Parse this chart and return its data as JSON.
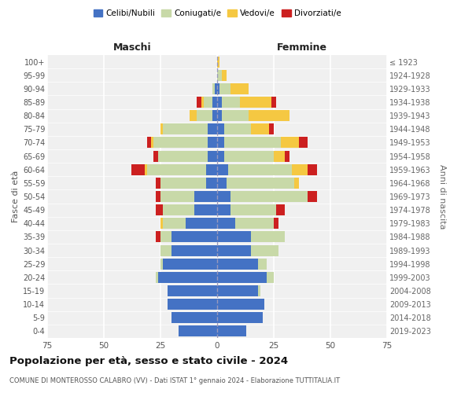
{
  "age_groups": [
    "0-4",
    "5-9",
    "10-14",
    "15-19",
    "20-24",
    "25-29",
    "30-34",
    "35-39",
    "40-44",
    "45-49",
    "50-54",
    "55-59",
    "60-64",
    "65-69",
    "70-74",
    "75-79",
    "80-84",
    "85-89",
    "90-94",
    "95-99",
    "100+"
  ],
  "birth_years": [
    "2019-2023",
    "2014-2018",
    "2009-2013",
    "2004-2008",
    "1999-2003",
    "1994-1998",
    "1989-1993",
    "1984-1988",
    "1979-1983",
    "1974-1978",
    "1969-1973",
    "1964-1968",
    "1959-1963",
    "1954-1958",
    "1949-1953",
    "1944-1948",
    "1939-1943",
    "1934-1938",
    "1929-1933",
    "1924-1928",
    "≤ 1923"
  ],
  "colors": {
    "celibi": "#4472c4",
    "coniugati": "#c8d9a8",
    "vedovi": "#f5c842",
    "divorziati": "#cc2020"
  },
  "maschi": {
    "celibi": [
      17,
      20,
      22,
      22,
      26,
      24,
      20,
      20,
      14,
      10,
      10,
      5,
      5,
      4,
      4,
      4,
      2,
      2,
      1,
      0,
      0
    ],
    "coniugati": [
      0,
      0,
      0,
      0,
      1,
      1,
      5,
      5,
      10,
      14,
      15,
      20,
      26,
      22,
      24,
      20,
      7,
      4,
      1,
      0,
      0
    ],
    "vedovi": [
      0,
      0,
      0,
      0,
      0,
      0,
      0,
      0,
      1,
      0,
      0,
      0,
      1,
      0,
      1,
      1,
      3,
      1,
      0,
      0,
      0
    ],
    "divorziati": [
      0,
      0,
      0,
      0,
      0,
      0,
      0,
      2,
      0,
      3,
      2,
      2,
      6,
      2,
      2,
      0,
      0,
      2,
      0,
      0,
      0
    ]
  },
  "femmine": {
    "celibi": [
      13,
      20,
      21,
      18,
      22,
      18,
      15,
      15,
      8,
      6,
      6,
      4,
      5,
      3,
      3,
      3,
      2,
      2,
      1,
      0,
      0
    ],
    "coniugati": [
      0,
      0,
      0,
      1,
      3,
      4,
      12,
      15,
      17,
      20,
      34,
      30,
      28,
      22,
      25,
      12,
      12,
      8,
      5,
      2,
      0
    ],
    "vedovi": [
      0,
      0,
      0,
      0,
      0,
      0,
      0,
      0,
      0,
      0,
      0,
      2,
      7,
      5,
      8,
      8,
      18,
      14,
      8,
      2,
      1
    ],
    "divorziati": [
      0,
      0,
      0,
      0,
      0,
      0,
      0,
      0,
      2,
      4,
      4,
      0,
      4,
      2,
      4,
      2,
      0,
      2,
      0,
      0,
      0
    ]
  },
  "xlim": 75,
  "title": "Popolazione per età, sesso e stato civile - 2024",
  "subtitle": "COMUNE DI MONTEROSSO CALABRO (VV) - Dati ISTAT 1° gennaio 2024 - Elaborazione TUTTITALIA.IT",
  "ylabel_left": "Fasce di età",
  "ylabel_right": "Anni di nascita",
  "xlabel_left": "Maschi",
  "xlabel_right": "Femmine",
  "legend_labels": [
    "Celibi/Nubili",
    "Coniugati/e",
    "Vedovi/e",
    "Divorziati/e"
  ],
  "bg_color": "#f0f0f0"
}
